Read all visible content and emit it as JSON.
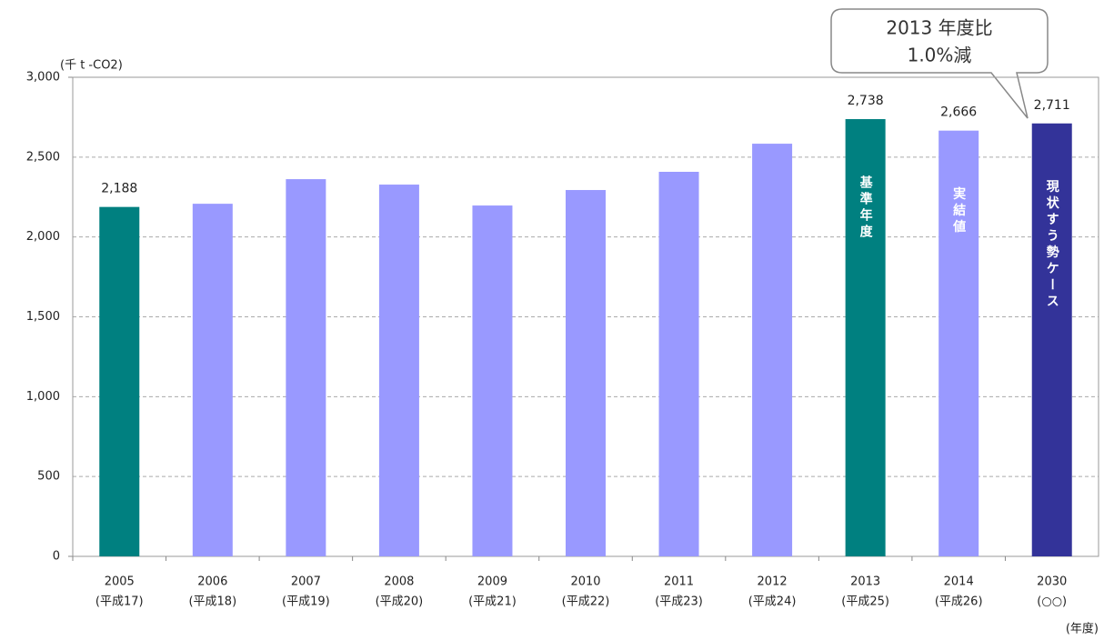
{
  "chart_data": {
    "type": "bar",
    "y_unit": "(千 t -CO2)",
    "x_unit": "(年度)",
    "categories": [
      "2005",
      "2006",
      "2007",
      "2008",
      "2009",
      "2010",
      "2011",
      "2012",
      "2013",
      "2014",
      "2030"
    ],
    "sublabels": [
      "(平成17)",
      "(平成18)",
      "(平成19)",
      "(平成20)",
      "(平成21)",
      "(平成22)",
      "(平成23)",
      "(平成24)",
      "(平成25)",
      "(平成26)",
      "(○○)"
    ],
    "values": [
      2188,
      2208,
      2362,
      2328,
      2197,
      2294,
      2408,
      2584,
      2738,
      2666,
      2711
    ],
    "value_labels": [
      "2,188",
      null,
      null,
      null,
      null,
      null,
      null,
      null,
      "2,738",
      "2,666",
      "2,711"
    ],
    "colors": [
      "#008080",
      "#9999ff",
      "#9999ff",
      "#9999ff",
      "#9999ff",
      "#9999ff",
      "#9999ff",
      "#9999ff",
      "#008080",
      "#9999ff",
      "#333399"
    ],
    "bar_texts": [
      null,
      null,
      null,
      null,
      null,
      null,
      null,
      null,
      "基準年度",
      "実結値",
      "現状すう勢ケース"
    ],
    "callout": [
      "2013 年度比",
      "1.0%減"
    ],
    "ylim": [
      0,
      3000
    ],
    "yticks": [
      0,
      500,
      {
        "value": 1000,
        "label": "1,000"
      },
      {
        "value": 1500,
        "label": "1,500"
      },
      {
        "value": 2000,
        "label": "2,000"
      },
      {
        "value": 2500,
        "label": "2,500"
      },
      {
        "value": 3000,
        "label": "3,000"
      }
    ],
    "grid": true
  }
}
